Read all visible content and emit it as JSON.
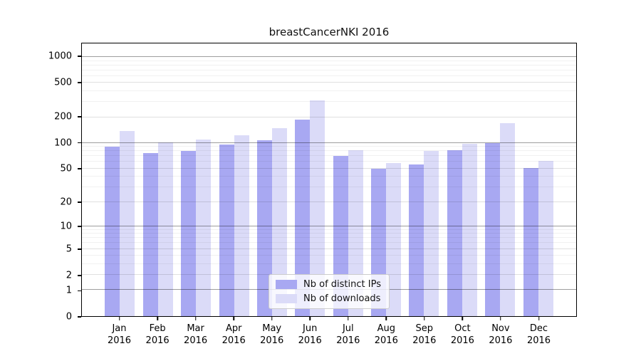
{
  "chart_data": {
    "type": "bar",
    "title": "breastCancerNKI 2016",
    "categories": [
      "Jan",
      "Feb",
      "Mar",
      "Apr",
      "May",
      "Jun",
      "Jul",
      "Aug",
      "Sep",
      "Oct",
      "Nov",
      "Dec"
    ],
    "year": "2016",
    "series": [
      {
        "name": "Nb of distinct IPs",
        "color": "#a8a8f2",
        "values": [
          90,
          76,
          80,
          96,
          108,
          186,
          70,
          50,
          56,
          82,
          100,
          51
        ]
      },
      {
        "name": "Nb of downloads",
        "color": "#dbdbf8",
        "values": [
          138,
          102,
          110,
          124,
          150,
          315,
          83,
          58,
          80,
          98,
          170,
          62
        ]
      }
    ],
    "xlabel": "",
    "ylabel": "",
    "yscale": "log1p",
    "ylim": [
      0,
      1433
    ],
    "yticks": [
      0,
      1,
      2,
      5,
      10,
      20,
      50,
      100,
      200,
      500,
      1000
    ],
    "minor_gridlines": [
      3,
      4,
      6,
      7,
      8,
      9,
      30,
      40,
      60,
      70,
      80,
      90,
      300,
      400,
      600,
      700,
      800,
      900
    ],
    "grid": "horizontal",
    "legend_position": "bottom-center",
    "background_color": "#ffffff",
    "axis_color": "#000000"
  }
}
